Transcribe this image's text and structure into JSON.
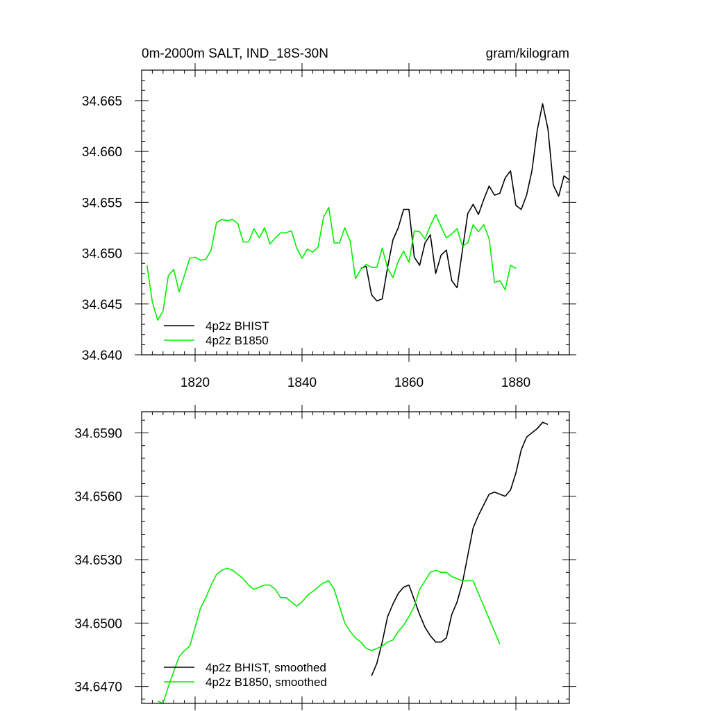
{
  "colors": {
    "bhist": "#000000",
    "b1850": "#00ee00",
    "axis": "#000000"
  },
  "chart_data": [
    {
      "type": "line",
      "title_left": "0m-2000m SALT, IND_18S-30N",
      "title_right": "gram/kilogram",
      "xlim": [
        1810,
        1890
      ],
      "ylim": [
        34.64,
        34.668
      ],
      "x_major_ticks": [
        1820,
        1840,
        1860,
        1880
      ],
      "x_minor_step": 2,
      "x_tick_labels": [
        "1820",
        "1840",
        "1860",
        "1880"
      ],
      "y_major_ticks": [
        34.64,
        34.645,
        34.65,
        34.655,
        34.66,
        34.665
      ],
      "y_minor_step": 0.001,
      "y_tick_labels": [
        "34.640",
        "34.645",
        "34.650",
        "34.655",
        "34.660",
        "34.665"
      ],
      "show_x_labels": true,
      "legend": {
        "position": "bottom-left",
        "entries": [
          "4p2z BHIST",
          "4p2z B1850"
        ]
      },
      "series": [
        {
          "name": "4p2z BHIST",
          "color_key": "bhist",
          "x0": 1851,
          "dx": 1,
          "values": [
            34.6485,
            34.6487,
            34.6459,
            34.6453,
            34.6455,
            34.6486,
            34.6513,
            34.6525,
            34.6543,
            34.6543,
            34.6496,
            34.6488,
            34.651,
            34.6518,
            34.648,
            34.6498,
            34.6503,
            34.6473,
            34.6466,
            34.6503,
            34.6539,
            34.6548,
            34.6538,
            34.6553,
            34.6566,
            34.6557,
            34.6559,
            34.6574,
            34.6581,
            34.6547,
            34.6543,
            34.6557,
            34.6581,
            34.6621,
            34.6647,
            34.6622,
            34.6567,
            34.6556,
            34.6576,
            34.6572
          ]
        },
        {
          "name": "4p2z B1850",
          "color_key": "b1850",
          "x0": 1811,
          "dx": 1,
          "values": [
            34.6488,
            34.6452,
            34.6434,
            34.6443,
            34.6478,
            34.6484,
            34.6462,
            34.6478,
            34.6495,
            34.6496,
            34.6493,
            34.6494,
            34.6503,
            34.653,
            34.6533,
            34.6532,
            34.6533,
            34.6529,
            34.6511,
            34.6511,
            34.6524,
            34.6515,
            34.6525,
            34.6509,
            34.6515,
            34.652,
            34.652,
            34.6522,
            34.6505,
            34.6495,
            34.6504,
            34.6501,
            34.6506,
            34.6535,
            34.6545,
            34.651,
            34.651,
            34.6525,
            34.6512,
            34.6475,
            34.6484,
            34.6489,
            34.6486,
            34.6486,
            34.6505,
            34.6485,
            34.6476,
            34.6492,
            34.6502,
            34.6491,
            34.6522,
            34.6521,
            34.6514,
            34.6527,
            34.6538,
            34.6526,
            34.6515,
            34.6519,
            34.6524,
            34.6507,
            34.651,
            34.6528,
            34.6521,
            34.6528,
            34.6514,
            34.6471,
            34.6473,
            34.6464,
            34.6488,
            34.6485
          ]
        }
      ]
    },
    {
      "type": "line",
      "title_left": "",
      "title_right": "",
      "xlim": [
        1810,
        1890
      ],
      "ylim": [
        34.6462,
        34.66
      ],
      "x_major_ticks": [
        1820,
        1840,
        1860,
        1880
      ],
      "x_minor_step": 2,
      "x_tick_labels": [],
      "y_major_ticks": [
        34.647,
        34.65,
        34.653,
        34.656,
        34.659
      ],
      "y_minor_step": 0.0006,
      "y_tick_labels": [
        "34.6470",
        "34.6500",
        "34.6530",
        "34.6560",
        "34.6590"
      ],
      "show_x_labels": false,
      "legend": {
        "position": "bottom-left",
        "entries": [
          "4p2z BHIST, smoothed",
          "4p2z B1850, smoothed"
        ]
      },
      "series": [
        {
          "name": "4p2z BHIST, smoothed",
          "color_key": "bhist",
          "x0": 1853,
          "dx": 1,
          "values": [
            34.6475,
            34.6481,
            34.6491,
            34.6503,
            34.6509,
            34.6514,
            34.6517,
            34.6518,
            34.6511,
            34.6504,
            34.6498,
            34.6494,
            34.6491,
            34.6491,
            34.6493,
            34.6504,
            34.651,
            34.6519,
            34.6532,
            34.6545,
            34.6551,
            34.6556,
            34.6561,
            34.6562,
            34.6561,
            34.656,
            34.6563,
            34.6571,
            34.6582,
            34.6588,
            34.659,
            34.6592,
            34.6595,
            34.6594
          ]
        },
        {
          "name": "4p2z B1850, smoothed",
          "color_key": "b1850",
          "x0": 1813,
          "dx": 1,
          "values": [
            34.6463,
            34.6462,
            34.647,
            34.6477,
            34.6484,
            34.6487,
            34.6489,
            34.6498,
            34.6507,
            34.6512,
            34.6518,
            34.6523,
            34.6525,
            34.6526,
            34.6525,
            34.6523,
            34.6521,
            34.6518,
            34.6516,
            34.6517,
            34.6518,
            34.6518,
            34.6516,
            34.6512,
            34.6512,
            34.651,
            34.6508,
            34.651,
            34.6513,
            34.6515,
            34.6517,
            34.6519,
            34.652,
            34.6516,
            34.6508,
            34.65,
            34.6496,
            34.6493,
            34.6491,
            34.6488,
            34.6487,
            34.6488,
            34.6489,
            34.6491,
            34.6492,
            34.6496,
            34.6499,
            34.6503,
            34.6508,
            34.6516,
            34.652,
            34.6524,
            34.6525,
            34.6524,
            34.6524,
            34.6522,
            34.6521,
            34.652,
            34.652,
            34.652,
            34.6514,
            34.6508,
            34.6502,
            34.6496,
            34.649
          ]
        }
      ]
    }
  ]
}
